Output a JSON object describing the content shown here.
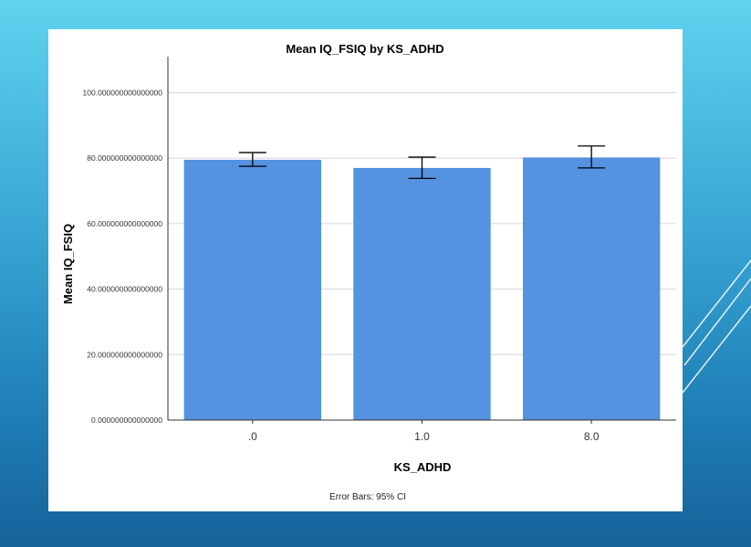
{
  "chart_data": {
    "type": "bar",
    "title": "Mean IQ_FSIQ by KS_ADHD",
    "xlabel": "KS_ADHD",
    "ylabel": "Mean IQ_FSIQ",
    "footnote": "Error Bars: 95% CI",
    "categories": [
      ".0",
      "1.0",
      "8.0"
    ],
    "values": [
      79.5,
      77.0,
      80.2
    ],
    "ci_low": [
      77.5,
      73.8,
      77.0
    ],
    "ci_high": [
      81.7,
      80.3,
      83.7
    ],
    "yticks": [
      0,
      20,
      40,
      60,
      80,
      100
    ],
    "ytick_labels": [
      "0.000000000000000",
      "20.000000000000000",
      "40.000000000000000",
      "60.000000000000000",
      "80.000000000000000",
      "100.000000000000000"
    ],
    "ylim": [
      0,
      111
    ],
    "grid": true,
    "bar_color": "#5592e0",
    "errorbar_color": "#000000"
  },
  "slide": {
    "background_top": "#5fd3ef",
    "background_bottom": "#17629b"
  }
}
